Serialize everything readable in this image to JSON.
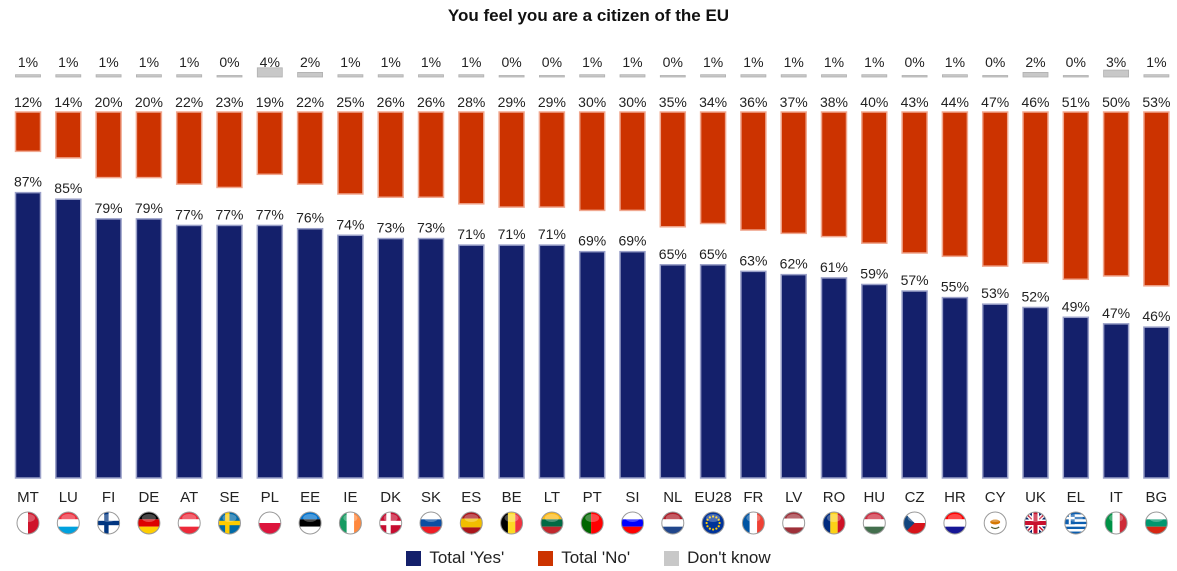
{
  "chart_data": {
    "type": "bar",
    "title": "You feel you are a citizen of the EU",
    "categories": [
      "MT",
      "LU",
      "FI",
      "DE",
      "AT",
      "SE",
      "PL",
      "EE",
      "IE",
      "DK",
      "SK",
      "ES",
      "BE",
      "LT",
      "PT",
      "SI",
      "NL",
      "EU28",
      "FR",
      "LV",
      "RO",
      "HU",
      "CZ",
      "HR",
      "CY",
      "UK",
      "EL",
      "IT",
      "BG"
    ],
    "series": [
      {
        "name": "Total 'Yes'",
        "color": "#14206b",
        "values": [
          87,
          85,
          79,
          79,
          77,
          77,
          77,
          76,
          74,
          73,
          73,
          71,
          71,
          71,
          69,
          69,
          65,
          65,
          63,
          62,
          61,
          59,
          57,
          55,
          53,
          52,
          49,
          47,
          46
        ]
      },
      {
        "name": "Total 'No'",
        "color": "#cc3300",
        "values": [
          12,
          14,
          20,
          20,
          22,
          23,
          19,
          22,
          25,
          26,
          26,
          28,
          29,
          29,
          30,
          30,
          35,
          34,
          36,
          37,
          38,
          40,
          43,
          44,
          47,
          46,
          51,
          50,
          53
        ]
      },
      {
        "name": "Don't know",
        "color": "#c8c8c8",
        "values": [
          1,
          1,
          1,
          1,
          1,
          0,
          4,
          2,
          1,
          1,
          1,
          1,
          0,
          0,
          1,
          1,
          0,
          1,
          1,
          1,
          1,
          1,
          0,
          1,
          0,
          2,
          0,
          3,
          1
        ]
      }
    ],
    "value_suffix": "%",
    "legend": "bottom-center",
    "flags": [
      "flag-mt-icon",
      "flag-lu-icon",
      "flag-fi-icon",
      "flag-de-icon",
      "flag-at-icon",
      "flag-se-icon",
      "flag-pl-icon",
      "flag-ee-icon",
      "flag-ie-icon",
      "flag-dk-icon",
      "flag-sk-icon",
      "flag-es-icon",
      "flag-be-icon",
      "flag-lt-icon",
      "flag-pt-icon",
      "flag-si-icon",
      "flag-nl-icon",
      "flag-eu-icon",
      "flag-fr-icon",
      "flag-lv-icon",
      "flag-ro-icon",
      "flag-hu-icon",
      "flag-cz-icon",
      "flag-hr-icon",
      "flag-cy-icon",
      "flag-uk-icon",
      "flag-el-icon",
      "flag-it-icon",
      "flag-bg-icon"
    ]
  }
}
